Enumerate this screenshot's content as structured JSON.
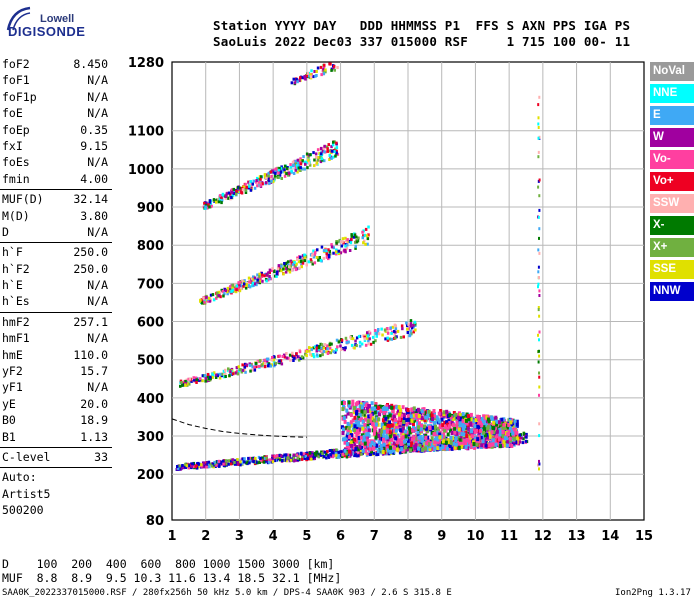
{
  "logo": {
    "line1": "Lowell",
    "line2": "DIGISONDE"
  },
  "header": {
    "row1": "Station YYYY DAY   DDD HHMMSS P1  FFS S AXN PPS IGA PS",
    "row2": "SaoLuis 2022 Dec03 337 015000 RSF     1 715 100 00- 11"
  },
  "params_top": [
    {
      "name": "foF2",
      "value": "8.450"
    },
    {
      "name": "foF1",
      "value": "N/A"
    },
    {
      "name": "foF1p",
      "value": "N/A"
    },
    {
      "name": "foE",
      "value": "N/A"
    },
    {
      "name": "foEp",
      "value": "0.35"
    },
    {
      "name": "fxI",
      "value": "9.15"
    },
    {
      "name": "foEs",
      "value": "N/A"
    },
    {
      "name": "fmin",
      "value": "4.00"
    }
  ],
  "params_muf": [
    {
      "name": "MUF(D)",
      "value": "32.14"
    },
    {
      "name": "M(D)",
      "value": "3.80"
    },
    {
      "name": "D",
      "value": "N/A"
    }
  ],
  "params_h": [
    {
      "name": "h`F",
      "value": "250.0"
    },
    {
      "name": "h`F2",
      "value": "250.0"
    },
    {
      "name": "h`E",
      "value": "N/A"
    },
    {
      "name": "h`Es",
      "value": "N/A"
    }
  ],
  "params_hm": [
    {
      "name": "hmF2",
      "value": "257.1"
    },
    {
      "name": "hmF1",
      "value": "N/A"
    },
    {
      "name": "hmE",
      "value": "110.0"
    },
    {
      "name": "yF2",
      "value": "15.7"
    },
    {
      "name": "yF1",
      "value": "N/A"
    },
    {
      "name": "yE",
      "value": "20.0"
    },
    {
      "name": "B0",
      "value": "18.9"
    },
    {
      "name": "B1",
      "value": "1.13"
    }
  ],
  "params_c": [
    {
      "name": "C-level",
      "value": "33"
    }
  ],
  "notes": [
    "Auto:",
    "Artist5",
    "500200"
  ],
  "legend": [
    {
      "label": "NoVal",
      "color": "#9a9a9a"
    },
    {
      "label": "NNE",
      "color": "#00ffff"
    },
    {
      "label": "E",
      "color": "#3fa9f5"
    },
    {
      "label": "W",
      "color": "#a0009f"
    },
    {
      "label": "Vo-",
      "color": "#ff3fa0"
    },
    {
      "label": "Vo+",
      "color": "#ee0022"
    },
    {
      "label": "SSW",
      "color": "#ffb0b0"
    },
    {
      "label": "X-",
      "color": "#007a00"
    },
    {
      "label": "X+",
      "color": "#70b040"
    },
    {
      "label": "SSE",
      "color": "#e0e000"
    },
    {
      "label": "NNW",
      "color": "#0000cc"
    }
  ],
  "footer": {
    "d_row": "D    100  200  400  600  800 1000 1500 3000 [km]",
    "muf_row": "MUF  8.8  8.9  9.5 10.3 11.6 13.4 18.5 32.1 [MHz]",
    "file_info": "SAA0K_2022337015000.RSF / 280fx256h 50 kHz 5.0 km / DPS-4 SAA0K 903 / 2.6 S 315.8 E",
    "version": "Ion2Png 1.3.17"
  },
  "chart_data": {
    "type": "scatter",
    "xlim": [
      1,
      15
    ],
    "ylim": [
      80,
      1280
    ],
    "x_ticks": [
      1,
      2,
      3,
      4,
      5,
      6,
      7,
      8,
      9,
      10,
      11,
      12,
      13,
      14,
      15
    ],
    "y_ticks": [
      80,
      200,
      300,
      400,
      500,
      600,
      700,
      800,
      900,
      1000,
      1100,
      1280
    ],
    "grid": true,
    "legend_placement": "right",
    "traces": [
      {
        "name": "F1 echo trace",
        "x_range": [
          1.1,
          11.5
        ],
        "y_start": 222,
        "y_end": 300,
        "thickness": 20
      },
      {
        "name": "F2 spread",
        "x_range": [
          6,
          11.2
        ],
        "y_center": 340,
        "y_spread": 70
      },
      {
        "name": "2F echo trace",
        "x_range": [
          1.2,
          8.2
        ],
        "y_start": 440,
        "y_end": 590,
        "thickness": 25
      },
      {
        "name": "3F echo trace",
        "x_range": [
          1.8,
          6.8
        ],
        "y_start": 655,
        "y_end": 830,
        "thickness": 28
      },
      {
        "name": "4F echo trace",
        "x_range": [
          1.9,
          5.9
        ],
        "y_start": 905,
        "y_end": 1060,
        "thickness": 28
      },
      {
        "name": "5F echo trace",
        "x_range": [
          4.5,
          5.9
        ],
        "y_start": 1230,
        "y_end": 1280,
        "thickness": 20
      },
      {
        "name": "vertical line",
        "x": 11.85,
        "y_range": [
          200,
          1280
        ]
      }
    ],
    "profile_curve": {
      "x": [
        1,
        1.5,
        2,
        2.5,
        3,
        3.5,
        4,
        4.5,
        5
      ],
      "y": [
        345,
        330,
        320,
        312,
        307,
        303,
        300,
        298,
        297
      ]
    }
  }
}
